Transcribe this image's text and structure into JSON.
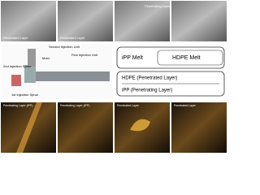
{
  "schematic": {
    "second_unit": "Second Injection Unit",
    "mold": "Mold",
    "first_unit": "First Injection Unit",
    "second_sprue": "2nd Injection Sprue",
    "first_sprue": "1st Injection Sprue"
  },
  "flow_top": {
    "left": "iPP  Melt",
    "right": "HDPE Melt"
  },
  "flow_bottom": {
    "top": "HDPE (Penetrated Layer)",
    "bottom": "iPP    (Penetrating Layer)"
  },
  "top_images": [
    "Penetrated Layer",
    "Penetrated Layer",
    "Penetrating Layer"
  ],
  "bottom_images": [
    "Penetrating Layer (iPP)",
    "Penetrating Layer (iPP)",
    "Penetrated Layer",
    "Penetrated Layer"
  ]
}
